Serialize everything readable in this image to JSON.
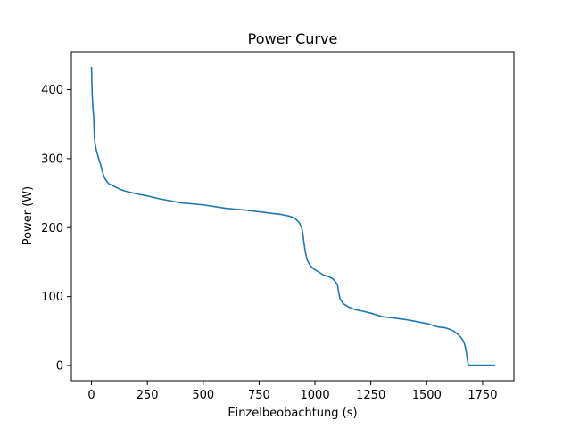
{
  "chart_data": {
    "type": "line",
    "title": "Power Curve",
    "xlabel": "Einzelbeobachtung (s)",
    "ylabel": "Power (W)",
    "xlim": [
      -90,
      1890
    ],
    "ylim": [
      -22,
      455
    ],
    "xticks": [
      0,
      250,
      500,
      750,
      1000,
      1250,
      1500,
      1750
    ],
    "yticks": [
      0,
      100,
      200,
      300,
      400
    ],
    "grid": false,
    "series_color": "#1f77b4",
    "series": [
      {
        "x": [
          0,
          3,
          6,
          10,
          13,
          17,
          22,
          28,
          35,
          42,
          50,
          55,
          62,
          70,
          80,
          100,
          125,
          150,
          175,
          200,
          250,
          300,
          400,
          500,
          600,
          700,
          800,
          850,
          880,
          900,
          915,
          930,
          940,
          945,
          950,
          955,
          960,
          965,
          975,
          990,
          1010,
          1040,
          1060,
          1080,
          1090,
          1100,
          1105,
          1112,
          1125,
          1150,
          1180,
          1200,
          1250,
          1300,
          1350,
          1400,
          1450,
          1500,
          1550,
          1580,
          1600,
          1620,
          1640,
          1655,
          1665,
          1672,
          1678,
          1682,
          1685,
          1688,
          1692,
          1700,
          1750,
          1800,
          1806
        ],
        "y": [
          433,
          395,
          375,
          360,
          330,
          320,
          312,
          305,
          297,
          290,
          280,
          275,
          270,
          266,
          263,
          260,
          256,
          253,
          251,
          249,
          246,
          242,
          236,
          233,
          228,
          225,
          221,
          219,
          217,
          215,
          212,
          207,
          200,
          193,
          180,
          168,
          160,
          153,
          147,
          141,
          137,
          131,
          129,
          126,
          122,
          118,
          108,
          97,
          90,
          85,
          81,
          80,
          76,
          71,
          69,
          67,
          64,
          61,
          56,
          55,
          53,
          50,
          45,
          40,
          35,
          28,
          18,
          8,
          2,
          1,
          0.5,
          0.5,
          0.5,
          0.5,
          0
        ]
      }
    ]
  }
}
